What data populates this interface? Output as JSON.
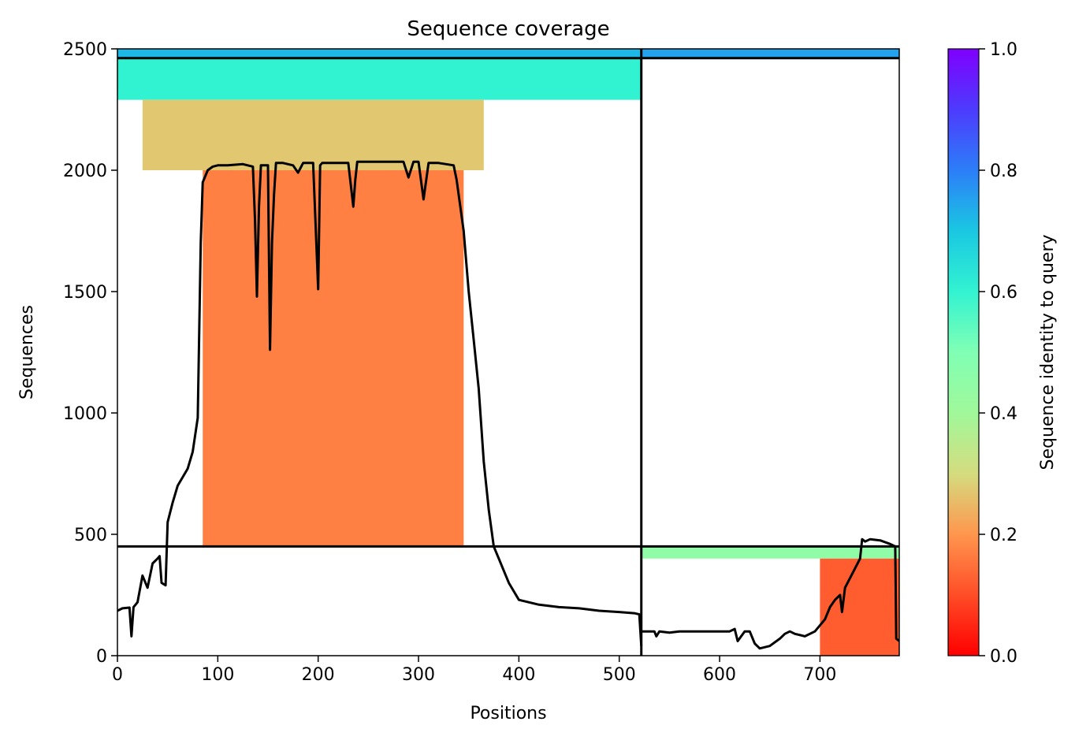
{
  "chart_data": {
    "type": "heatmap",
    "title": "Sequence coverage",
    "xlabel": "Positions",
    "ylabel": "Sequences",
    "xlim": [
      0,
      779
    ],
    "ylim": [
      0,
      2500
    ],
    "xticks": [
      0,
      100,
      200,
      300,
      400,
      500,
      600,
      700
    ],
    "yticks": [
      0,
      500,
      1000,
      1500,
      2000,
      2500
    ],
    "grid": false,
    "colorbar": {
      "label": "Sequence identity to query",
      "colormap": "rainbow_r",
      "range": [
        0.0,
        1.0
      ],
      "ticks": [
        0.0,
        0.2,
        0.4,
        0.6,
        0.8,
        1.0
      ]
    },
    "chain_boundary_x": 522,
    "row_boundaries_y": [
      450,
      2462
    ],
    "blocks": [
      {
        "name": "chain1-paired-top",
        "x_range": [
          0,
          522
        ],
        "y_range": [
          2462,
          2500
        ],
        "identity": 0.72
      },
      {
        "name": "chain2-paired-top",
        "x_range": [
          522,
          779
        ],
        "y_range": [
          2462,
          2500
        ],
        "identity": 0.75
      },
      {
        "name": "chain1-high-identity",
        "x_range": [
          0,
          522
        ],
        "y_range": [
          2290,
          2462
        ],
        "identity": 0.6
      },
      {
        "name": "chain1-mid-identity",
        "x_range": [
          25,
          365
        ],
        "y_range": [
          2000,
          2290
        ],
        "identity": 0.27
      },
      {
        "name": "chain1-low-identity",
        "x_range": [
          85,
          345
        ],
        "y_range": [
          450,
          2000
        ],
        "identity": 0.17
      },
      {
        "name": "chain2-top-of-lower",
        "x_range": [
          522,
          779
        ],
        "y_range": [
          400,
          450
        ],
        "identity": 0.45
      },
      {
        "name": "chain2-low-identity",
        "x_range": [
          700,
          779
        ],
        "y_range": [
          0,
          400
        ],
        "identity": 0.12
      }
    ],
    "coverage_line": {
      "name": "coverage",
      "color": "#000000",
      "segments": [
        {
          "x": [
            0,
            5,
            12,
            14,
            16,
            20,
            25,
            30,
            35,
            40,
            42,
            44,
            48,
            50,
            55,
            60,
            70,
            75,
            80,
            83,
            85,
            90,
            95,
            100,
            110,
            125,
            135,
            137,
            139,
            141,
            143,
            150,
            152,
            154,
            156,
            158,
            165,
            175,
            180,
            185,
            195,
            200,
            202,
            204,
            210,
            220,
            230,
            235,
            237,
            239,
            250,
            260,
            280,
            285,
            290,
            295,
            300,
            305,
            310,
            320,
            335,
            338,
            345,
            350,
            355,
            360,
            365,
            370,
            375,
            380,
            390,
            400,
            420,
            440,
            460,
            480,
            500,
            515,
            520,
            522
          ],
          "y": [
            185,
            195,
            198,
            80,
            200,
            220,
            330,
            280,
            380,
            400,
            410,
            300,
            290,
            550,
            630,
            700,
            770,
            840,
            980,
            1700,
            1950,
            2000,
            2015,
            2020,
            2020,
            2025,
            2015,
            1800,
            1480,
            1850,
            2020,
            2020,
            1260,
            1700,
            1900,
            2030,
            2030,
            2020,
            1990,
            2030,
            2030,
            1510,
            2020,
            2030,
            2030,
            2030,
            2030,
            1850,
            1960,
            2035,
            2035,
            2035,
            2035,
            2035,
            1970,
            2035,
            2035,
            1880,
            2030,
            2030,
            2020,
            1960,
            1750,
            1500,
            1300,
            1100,
            800,
            600,
            450,
            400,
            300,
            230,
            210,
            200,
            195,
            185,
            180,
            175,
            170,
            40
          ]
        },
        {
          "x": [
            522,
            525,
            530,
            535,
            537,
            540,
            550,
            560,
            600,
            610,
            615,
            618,
            625,
            630,
            635,
            640,
            650,
            660,
            665,
            670,
            675,
            685,
            695,
            705,
            710,
            715,
            720,
            722,
            725,
            730,
            735,
            740,
            742,
            745,
            750,
            760,
            770,
            775,
            776,
            779
          ],
          "y": [
            100,
            100,
            100,
            100,
            80,
            100,
            95,
            100,
            100,
            100,
            110,
            60,
            100,
            100,
            50,
            30,
            40,
            70,
            90,
            100,
            90,
            80,
            100,
            150,
            200,
            230,
            250,
            180,
            280,
            320,
            360,
            400,
            480,
            470,
            480,
            475,
            460,
            450,
            70,
            60
          ]
        }
      ]
    }
  }
}
